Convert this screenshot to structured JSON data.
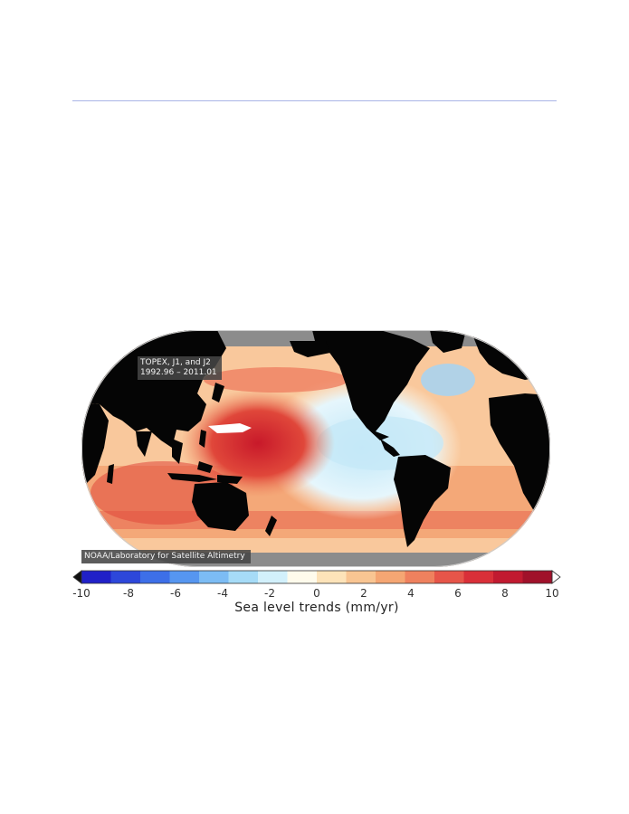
{
  "map": {
    "satellites_label": "TOPEX, J1, and J2",
    "period_label": "1992.96 – 2011.01",
    "credit": "NOAA/Laboratory for Satellite Altimetry",
    "colors": {
      "land": "#050505",
      "ice": "#8c8c8c",
      "strong_rise": "#d9332b",
      "moderate_rise": "#f5b58a",
      "neutral": "#fff6e4",
      "slight_fall": "#d6f0fb",
      "missing": "#ffffff"
    }
  },
  "colorbar": {
    "title": "Sea level trends (mm/yr)",
    "min": -10,
    "max": 10,
    "ticks": [
      "-10",
      "-8",
      "-6",
      "-4",
      "-2",
      "0",
      "2",
      "4",
      "6",
      "8",
      "10"
    ],
    "colors": [
      "#2020c8",
      "#2d47da",
      "#3d6fe8",
      "#5696f0",
      "#7cbcf4",
      "#a6dbf7",
      "#d2f0fb",
      "#fffbec",
      "#fde3b9",
      "#f9c592",
      "#f5a673",
      "#ef815e",
      "#e65549",
      "#d92f38",
      "#c11a30",
      "#a0112a"
    ]
  }
}
